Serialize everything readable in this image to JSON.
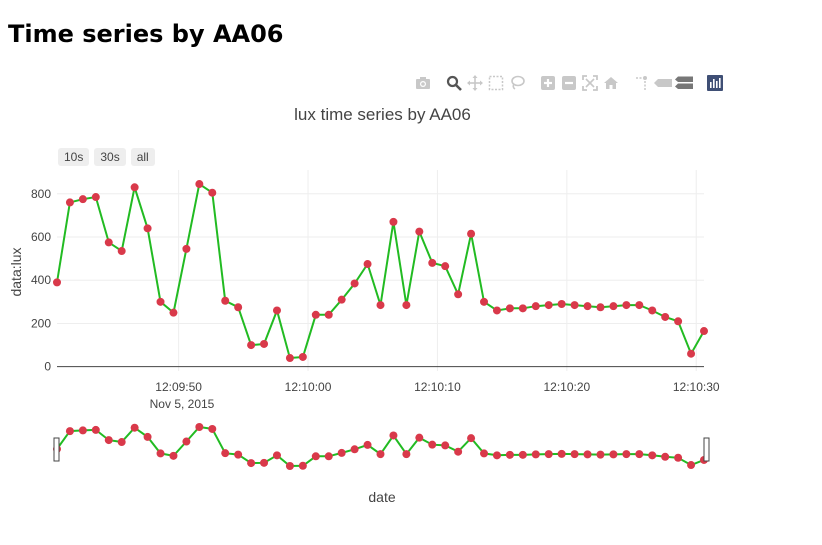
{
  "page": {
    "title": "Time series by AA06"
  },
  "modebar": {
    "icons": [
      "camera-icon",
      "zoom-icon",
      "pan-icon",
      "box-select-icon",
      "lasso-icon",
      "zoom-in-icon",
      "zoom-out-icon",
      "autoscale-icon",
      "reset-axes-icon",
      "spike-lines-icon",
      "hover-closest-icon",
      "hover-compare-icon",
      "plotly-logo-icon"
    ]
  },
  "range_selector": {
    "buttons": [
      "10s",
      "30s",
      "all"
    ]
  },
  "chart_data": {
    "type": "line",
    "title": "lux time series by AA06",
    "xlabel": "date",
    "ylabel": "data:lux",
    "x_tick_labels": [
      "12:09:50",
      "12:10:00",
      "12:10:10",
      "12:10:20",
      "12:10:30"
    ],
    "x_date_label": "Nov 5, 2015",
    "y_ticks": [
      0,
      200,
      400,
      600,
      800
    ],
    "ylim": [
      -20,
      910
    ],
    "x_start": "2015-11-05 12:09:40.6",
    "x_end": "2015-11-05 12:10:30.6",
    "line_color": "#22bb22",
    "marker_color": "#d9394a",
    "grid": true,
    "series": [
      {
        "values": [
          390,
          760,
          775,
          785,
          575,
          535,
          830,
          640,
          300,
          250,
          545,
          845,
          805,
          305,
          275,
          100,
          105,
          260,
          40,
          45,
          240,
          240,
          310,
          385,
          475,
          285,
          670,
          285,
          625,
          480,
          465,
          335,
          615,
          300,
          260,
          270,
          270,
          280,
          285,
          290,
          285,
          280,
          275,
          280,
          285,
          285,
          260,
          230,
          210,
          60,
          165
        ]
      }
    ],
    "rangeslider": true
  }
}
